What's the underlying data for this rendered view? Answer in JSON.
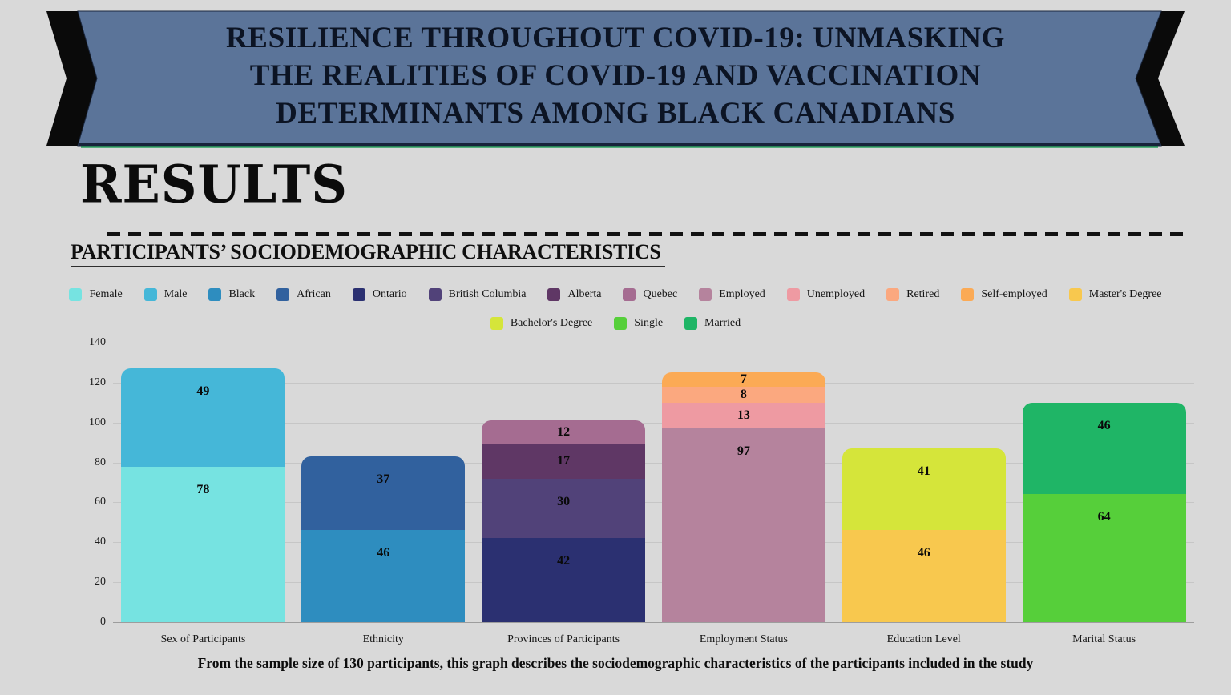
{
  "banner": {
    "line1": "RESILIENCE THROUGHOUT COVID-19: UNMASKING",
    "line2": "THE REALITIES OF COVID-19 AND VACCINATION",
    "line3": "DETERMINANTS AMONG BLACK CANADIANS"
  },
  "colors": {
    "page_background": "#d9d9d9",
    "banner_blue": "#5b7499",
    "ribbon_black": "#0a0a0a",
    "banner_edge_dark": "#17233a",
    "banner_edge_green": "#2ca05f",
    "gridline": "#c6c6c6",
    "axis_line": "#9d9d9d"
  },
  "results_heading": "RESULTS",
  "section_title": "PARTICIPANTS’ SOCIODEMOGRAPHIC CHARACTERISTICS",
  "caption": "From the sample size of 130 participants, this graph describes the sociodemographic characteristics of the participants included in the study",
  "chart_data": {
    "type": "bar",
    "stacked": true,
    "title": "",
    "xlabel": "",
    "ylabel": "",
    "ylim": [
      0,
      140
    ],
    "yticks": [
      0,
      20,
      40,
      60,
      80,
      100,
      120,
      140
    ],
    "grid": true,
    "legend_position": "top",
    "legend_row_counts": [
      13,
      3
    ],
    "sample_size_total": 130,
    "categories": [
      "Sex of Participants",
      "Ethnicity",
      "Provinces of Participants",
      "Employment Status",
      "Education Level",
      "Marital Status"
    ],
    "groups": [
      {
        "category": "Sex of Participants",
        "segments": [
          {
            "label": "Female",
            "value": 78,
            "color": "#76e3e1"
          },
          {
            "label": "Male",
            "value": 49,
            "color": "#45b7d8"
          }
        ]
      },
      {
        "category": "Ethnicity",
        "segments": [
          {
            "label": "Black",
            "value": 46,
            "color": "#2e8dbf"
          },
          {
            "label": "African",
            "value": 37,
            "color": "#31619e"
          }
        ]
      },
      {
        "category": "Provinces of Participants",
        "segments": [
          {
            "label": "Ontario",
            "value": 42,
            "color": "#2b3071"
          },
          {
            "label": "British Columbia",
            "value": 30,
            "color": "#514279"
          },
          {
            "label": "Alberta",
            "value": 17,
            "color": "#5f3765"
          },
          {
            "label": "Quebec",
            "value": 12,
            "color": "#a56c91"
          }
        ]
      },
      {
        "category": "Employment Status",
        "segments": [
          {
            "label": "Employed",
            "value": 97,
            "color": "#b5839d"
          },
          {
            "label": "Unemployed",
            "value": 13,
            "color": "#ee9aa2"
          },
          {
            "label": "Retired",
            "value": 8,
            "color": "#fba87f"
          },
          {
            "label": "Self-employed",
            "value": 7,
            "color": "#fbaa55"
          }
        ]
      },
      {
        "category": "Education Level",
        "segments": [
          {
            "label": "Master's Degree",
            "value": 46,
            "color": "#f8c84e"
          },
          {
            "label": "Bachelor's Degree",
            "value": 41,
            "color": "#d5e53a"
          }
        ]
      },
      {
        "category": "Marital Status",
        "segments": [
          {
            "label": "Single",
            "value": 64,
            "color": "#56cf3a"
          },
          {
            "label": "Married",
            "value": 46,
            "color": "#1fb566"
          }
        ]
      }
    ]
  }
}
